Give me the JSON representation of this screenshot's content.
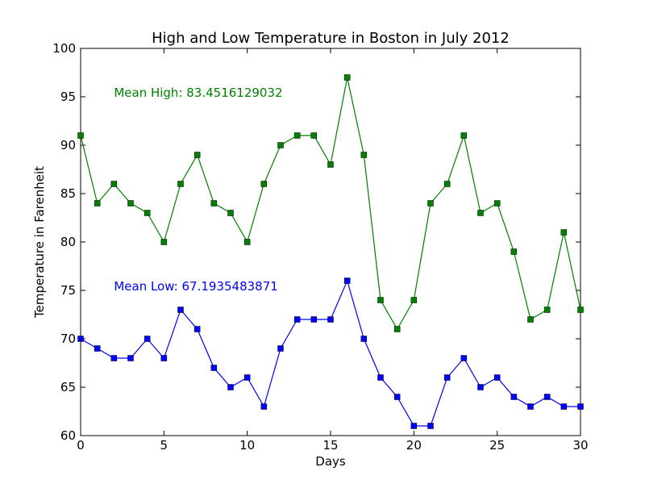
{
  "chart_data": {
    "type": "line",
    "title": "High and Low Temperature in Boston in July 2012",
    "xlabel": "Days",
    "ylabel": "Temperature in Farenheit",
    "xlim": [
      0,
      30
    ],
    "ylim": [
      60,
      100
    ],
    "xticks": [
      "0",
      "5",
      "10",
      "15",
      "20",
      "25",
      "30"
    ],
    "yticks": [
      "60",
      "65",
      "70",
      "75",
      "80",
      "85",
      "90",
      "95",
      "100"
    ],
    "grid": false,
    "x": [
      0,
      1,
      2,
      3,
      4,
      5,
      6,
      7,
      8,
      9,
      10,
      11,
      12,
      13,
      14,
      15,
      16,
      17,
      18,
      19,
      20,
      21,
      22,
      23,
      24,
      25,
      26,
      27,
      28,
      29,
      30
    ],
    "series": [
      {
        "values": [
          91,
          84,
          86,
          84,
          83,
          80,
          86,
          89,
          84,
          83,
          80,
          86,
          90,
          91,
          91,
          88,
          97,
          89,
          74,
          71,
          74,
          84,
          86,
          91,
          83,
          84,
          79,
          72,
          73,
          81,
          73
        ],
        "color": "#008000",
        "marker": "square"
      },
      {
        "values": [
          70,
          69,
          68,
          68,
          70,
          68,
          73,
          71,
          67,
          65,
          66,
          63,
          69,
          72,
          72,
          72,
          76,
          70,
          66,
          64,
          61,
          61,
          66,
          68,
          65,
          66,
          64,
          63,
          64,
          63,
          63
        ],
        "color": "#0000ff",
        "marker": "square"
      }
    ],
    "annotations": [
      {
        "text": "Mean High: 83.4516129032",
        "x": 2,
        "y": 95,
        "color": "#008000"
      },
      {
        "text": "Mean Low: 67.1935483871",
        "x": 2,
        "y": 75,
        "color": "#0000ff"
      }
    ]
  }
}
